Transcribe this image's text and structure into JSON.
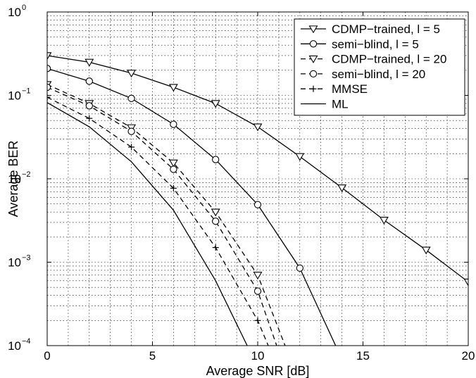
{
  "chart_data": {
    "type": "line",
    "xlabel": "Average SNR [dB]",
    "ylabel": "Average BER",
    "xlim": [
      0,
      20
    ],
    "ylim": [
      0.0001,
      1
    ],
    "yscale": "log",
    "grid": true,
    "legend_position": "top-right",
    "x_ticks": [
      0,
      5,
      10,
      15,
      20
    ],
    "x_tick_labels": [
      "0",
      "5",
      "10",
      "15",
      "20"
    ],
    "y_ticks": [
      {
        "value": 1,
        "base": "10",
        "exp": "0"
      },
      {
        "value": 0.1,
        "base": "10",
        "exp": "−1"
      },
      {
        "value": 0.01,
        "base": "10",
        "exp": "−2"
      },
      {
        "value": 0.001,
        "base": "10",
        "exp": "−3"
      },
      {
        "value": 0.0001,
        "base": "10",
        "exp": "−4"
      }
    ],
    "series": [
      {
        "name": "CDMP−trained, l = 5",
        "marker": "triangle-down",
        "dash": "solid",
        "x": [
          0,
          2,
          4,
          6,
          8,
          10,
          12,
          14,
          16,
          18,
          20
        ],
        "y": [
          0.3,
          0.25,
          0.185,
          0.125,
          0.08,
          0.042,
          0.0185,
          0.0078,
          0.0032,
          0.0014,
          0.00058
        ]
      },
      {
        "name": "semi−blind, l = 5",
        "marker": "circle",
        "dash": "solid",
        "x": [
          0,
          2,
          4,
          6,
          8,
          10,
          12,
          13.7
        ],
        "y": [
          0.21,
          0.148,
          0.092,
          0.045,
          0.017,
          0.0049,
          0.00085,
          0.0001
        ],
        "marker_x": [
          0,
          2,
          4,
          6,
          8,
          10,
          12
        ]
      },
      {
        "name": "CDMP−trained, l = 20",
        "marker": "triangle-down",
        "dash": "dashed",
        "x": [
          0,
          2,
          4,
          6,
          8,
          10,
          11.3
        ],
        "y": [
          0.135,
          0.08,
          0.041,
          0.0155,
          0.004,
          0.0007,
          0.0001
        ],
        "marker_x": [
          0,
          2,
          4,
          6,
          8,
          10
        ]
      },
      {
        "name": "semi−blind, l = 20",
        "marker": "circle",
        "dash": "dashed",
        "x": [
          0,
          2,
          4,
          6,
          8,
          10,
          10.9
        ],
        "y": [
          0.125,
          0.075,
          0.037,
          0.013,
          0.0031,
          0.00045,
          0.0001
        ],
        "marker_x": [
          0,
          2,
          4,
          6,
          8,
          10
        ]
      },
      {
        "name": "MMSE",
        "marker": "plus",
        "dash": "dashed",
        "x": [
          0,
          2,
          4,
          6,
          8,
          10,
          10.5
        ],
        "y": [
          0.095,
          0.053,
          0.024,
          0.0077,
          0.0015,
          0.0002,
          0.0001
        ],
        "marker_x": [
          0,
          2,
          4,
          6,
          8,
          10
        ]
      },
      {
        "name": "ML",
        "marker": "none",
        "dash": "solid",
        "x": [
          0,
          2,
          4,
          6,
          8,
          9.5
        ],
        "y": [
          0.082,
          0.042,
          0.016,
          0.0042,
          0.0006,
          0.0001
        ]
      }
    ]
  },
  "colors": {
    "line": "#000000",
    "grid": "#000000",
    "background": "#ffffff"
  }
}
